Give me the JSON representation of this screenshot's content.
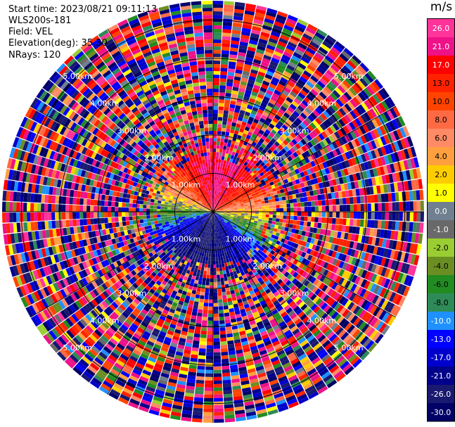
{
  "header": {
    "start_time": "Start time: 2023/08/21 09:11:13",
    "instrument": "WLS200s-181",
    "field": "Field: VEL",
    "elevation": "Elevation(deg): 35.30",
    "nrays": "NRays: 120"
  },
  "colorbar": {
    "unit": "m/s",
    "ticks": [
      "26.0",
      "21.0",
      "17.0",
      "13.0",
      "10.0",
      "8.0",
      "6.0",
      "4.0",
      "2.0",
      "1.0",
      "0.0",
      "-1.0",
      "-2.0",
      "-4.0",
      "-6.0",
      "-8.0",
      "-10.0",
      "-13.0",
      "-17.0",
      "-21.0",
      "-26.0",
      "-30.0"
    ],
    "colors": [
      "#ff3399",
      "#ee1188",
      "#ff0000",
      "#ff2200",
      "#ff4400",
      "#ff6a44",
      "#ff8a66",
      "#ffa040",
      "#ffcc00",
      "#ffff00",
      "#708090",
      "#696969",
      "#9acd32",
      "#6b8e23",
      "#228b22",
      "#2e8b57",
      "#1e90ff",
      "#0000ff",
      "#0000cd",
      "#00008b",
      "#191970",
      "#000066"
    ]
  },
  "chart_data": {
    "type": "heatmap",
    "projection": "PPI polar",
    "field": "VEL",
    "units": "m/s",
    "n_rays": 120,
    "range_rings_km": [
      1.0,
      2.0,
      3.0,
      4.0,
      5.0
    ],
    "range_ring_labels": [
      "1.00km",
      "2.00km",
      "3.00km",
      "4.00km",
      "5.00km"
    ],
    "vmin": -30.0,
    "vmax": 26.0,
    "near_field_pattern": {
      "north_sector": "positive ~17 to 26 m/s",
      "east_sector": "positive ~2 to 6 m/s",
      "south_sector": "negative ~-13 to -21 m/s",
      "west_sector": "mixed ~-2 to 8 m/s"
    },
    "far_field_pattern": "random noise across full scale"
  }
}
